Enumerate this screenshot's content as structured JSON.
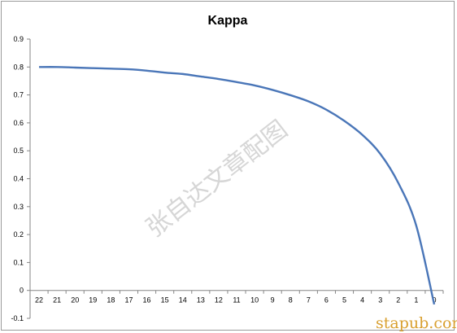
{
  "chart_data": {
    "type": "line",
    "title": "Kappa",
    "categories": [
      "22",
      "21",
      "20",
      "19",
      "18",
      "17",
      "16",
      "15",
      "14",
      "13",
      "12",
      "11",
      "10",
      "9",
      "8",
      "7",
      "6",
      "5",
      "4",
      "3",
      "2",
      "1",
      "0"
    ],
    "series": [
      {
        "values": [
          0.8,
          0.8,
          0.798,
          0.796,
          0.794,
          0.792,
          0.787,
          0.78,
          0.775,
          0.766,
          0.757,
          0.746,
          0.734,
          0.718,
          0.699,
          0.677,
          0.647,
          0.607,
          0.557,
          0.489,
          0.385,
          0.232,
          -0.05
        ]
      }
    ],
    "ylim": [
      -0.1,
      0.9
    ],
    "yticks": [
      "-0.1",
      "0",
      "0.1",
      "0.2",
      "0.3",
      "0.4",
      "0.5",
      "0.6",
      "0.7",
      "0.8",
      "0.9"
    ],
    "color": "#4a76b8",
    "grid": false,
    "legend": "none"
  },
  "watermark": {
    "text": "张自达文章配图",
    "site": "stapub.com"
  }
}
